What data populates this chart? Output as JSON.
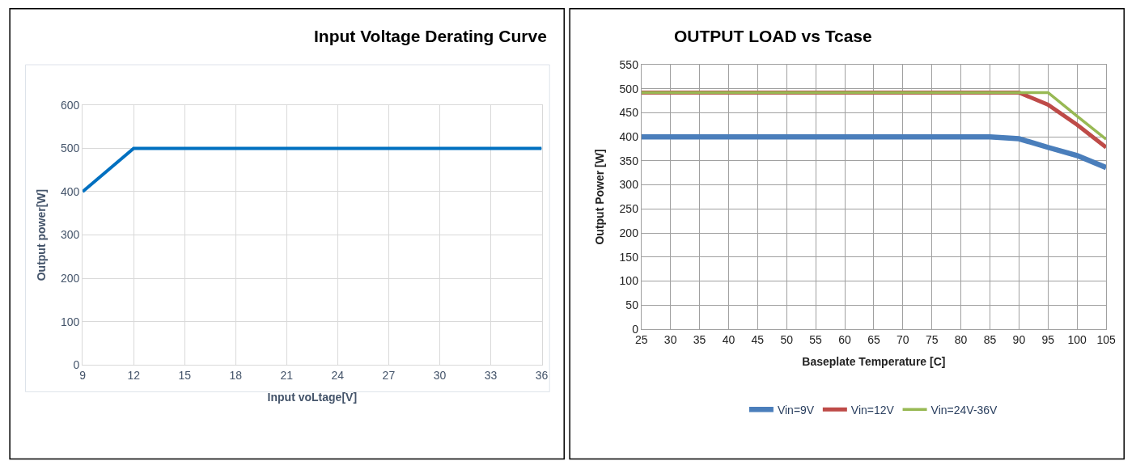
{
  "chart_data": [
    {
      "type": "line",
      "title": "Input Voltage Derating Curve",
      "xlabel": "Input voLtage[V]",
      "ylabel": "Output power[W]",
      "x": [
        9,
        12,
        36
      ],
      "series": [
        {
          "color": "#0070c0",
          "values": [
            400,
            500,
            500
          ]
        }
      ],
      "xlim": [
        9,
        36
      ],
      "xticks": [
        9,
        12,
        15,
        18,
        21,
        24,
        27,
        30,
        33,
        36
      ],
      "ylim": [
        0,
        600
      ],
      "yticks": [
        0,
        100,
        200,
        300,
        400,
        500,
        600
      ],
      "grid": true,
      "legend": false,
      "marker": "none"
    },
    {
      "type": "line",
      "title": "OUTPUT LOAD vs Tcase",
      "xlabel": "Baseplate Temperature [C]",
      "ylabel": "Output Power [W]",
      "x": [
        25,
        85,
        90,
        95,
        100,
        105
      ],
      "series": [
        {
          "name": "Vin=9V",
          "color": "#4a7ebb",
          "values": [
            400,
            400,
            396,
            378,
            361,
            336
          ]
        },
        {
          "name": "Vin=12V",
          "color": "#be4b48",
          "values": [
            492,
            492,
            492,
            467,
            425,
            378
          ]
        },
        {
          "name": "Vin=24V-36V",
          "color": "#98b954",
          "values": [
            492,
            492,
            492,
            492,
            443,
            395
          ]
        }
      ],
      "xlim": [
        25,
        105
      ],
      "xticks": [
        25,
        30,
        35,
        40,
        45,
        50,
        55,
        60,
        65,
        70,
        75,
        80,
        85,
        90,
        95,
        100,
        105
      ],
      "ylim": [
        0,
        550
      ],
      "yticks": [
        0,
        50,
        100,
        150,
        200,
        250,
        300,
        350,
        400,
        450,
        500,
        550
      ],
      "grid": true,
      "legend": "bottom",
      "marker": "none"
    }
  ]
}
